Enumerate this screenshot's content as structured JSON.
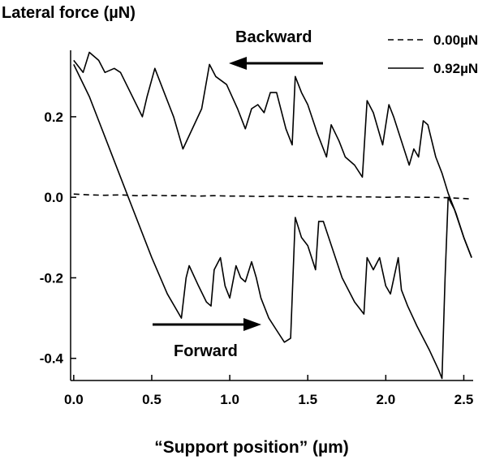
{
  "chart_data": {
    "type": "line",
    "title": "Lateral force (µN)",
    "xlabel": "“Support position” (µm)",
    "ylabel": "",
    "xlim": [
      -0.02,
      2.56
    ],
    "ylim": [
      -0.455,
      0.365
    ],
    "xticks": [
      0.0,
      0.5,
      1.0,
      1.5,
      2.0,
      2.5
    ],
    "xtick_labels": [
      "0.0",
      "0.5",
      "1.0",
      "1.5",
      "2.0",
      "2.5"
    ],
    "yticks": [
      0.2,
      0.0,
      -0.2,
      -0.4
    ],
    "ytick_labels": [
      "0.2",
      "0.0",
      "-0.2",
      "-0.4"
    ],
    "grid": false,
    "legend_position": "top-right",
    "annotations": {
      "backward": "Backward",
      "forward": "Forward"
    },
    "series": [
      {
        "name": "0.00µN",
        "style": "dashed",
        "x": [
          0.0,
          0.1,
          0.2,
          0.3,
          0.4,
          0.5,
          0.6,
          0.7,
          0.8,
          0.9,
          1.0,
          1.1,
          1.2,
          1.3,
          1.4,
          1.5,
          1.6,
          1.7,
          1.8,
          1.9,
          2.0,
          2.1,
          2.2,
          2.3,
          2.4,
          2.5,
          2.55
        ],
        "y": [
          0.008,
          0.006,
          0.005,
          0.006,
          0.004,
          0.005,
          0.004,
          0.004,
          0.003,
          0.004,
          0.003,
          0.003,
          0.002,
          0.003,
          0.002,
          0.002,
          0.001,
          0.002,
          0.001,
          0.001,
          0.0,
          0.001,
          0.0,
          0.0,
          -0.001,
          -0.003,
          -0.004
        ]
      },
      {
        "name": "0.92µN",
        "style": "solid",
        "description": "backward trace",
        "x": [
          0.0,
          0.06,
          0.1,
          0.16,
          0.2,
          0.26,
          0.3,
          0.44,
          0.47,
          0.52,
          0.58,
          0.64,
          0.7,
          0.82,
          0.87,
          0.91,
          0.98,
          1.05,
          1.1,
          1.14,
          1.18,
          1.22,
          1.26,
          1.3,
          1.36,
          1.4,
          1.42,
          1.46,
          1.5,
          1.56,
          1.62,
          1.65,
          1.7,
          1.74,
          1.8,
          1.85,
          1.88,
          1.92,
          1.98,
          2.02,
          2.05,
          2.1,
          2.15,
          2.18,
          2.21,
          2.24,
          2.27,
          2.32,
          2.36,
          2.4,
          2.45,
          2.5,
          2.55
        ],
        "y": [
          0.34,
          0.31,
          0.36,
          0.34,
          0.31,
          0.32,
          0.31,
          0.2,
          0.25,
          0.32,
          0.26,
          0.2,
          0.12,
          0.22,
          0.33,
          0.3,
          0.28,
          0.22,
          0.17,
          0.22,
          0.23,
          0.21,
          0.26,
          0.26,
          0.17,
          0.13,
          0.3,
          0.26,
          0.23,
          0.16,
          0.1,
          0.18,
          0.14,
          0.1,
          0.08,
          0.05,
          0.24,
          0.21,
          0.13,
          0.23,
          0.2,
          0.14,
          0.08,
          0.12,
          0.1,
          0.19,
          0.18,
          0.1,
          0.06,
          0.01,
          -0.04,
          -0.1,
          -0.15
        ]
      },
      {
        "name": "0.92µN",
        "style": "solid",
        "description": "forward trace",
        "x": [
          0.0,
          0.1,
          0.2,
          0.35,
          0.5,
          0.6,
          0.69,
          0.72,
          0.74,
          0.8,
          0.85,
          0.88,
          0.9,
          0.94,
          0.97,
          1.0,
          1.04,
          1.07,
          1.1,
          1.14,
          1.17,
          1.2,
          1.25,
          1.3,
          1.35,
          1.39,
          1.42,
          1.46,
          1.5,
          1.55,
          1.57,
          1.6,
          1.66,
          1.72,
          1.8,
          1.86,
          1.88,
          1.92,
          1.96,
          2.0,
          2.03,
          2.08,
          2.1,
          2.14,
          2.2,
          2.28,
          2.34,
          2.36,
          2.38,
          2.4,
          2.44,
          2.5,
          2.55
        ],
        "y": [
          0.33,
          0.25,
          0.15,
          0.0,
          -0.15,
          -0.24,
          -0.3,
          -0.2,
          -0.17,
          -0.22,
          -0.26,
          -0.27,
          -0.18,
          -0.15,
          -0.22,
          -0.25,
          -0.17,
          -0.2,
          -0.21,
          -0.16,
          -0.2,
          -0.25,
          -0.3,
          -0.33,
          -0.36,
          -0.35,
          -0.05,
          -0.1,
          -0.12,
          -0.18,
          -0.06,
          -0.06,
          -0.13,
          -0.2,
          -0.26,
          -0.29,
          -0.15,
          -0.18,
          -0.15,
          -0.22,
          -0.24,
          -0.15,
          -0.23,
          -0.27,
          -0.32,
          -0.38,
          -0.43,
          -0.45,
          -0.2,
          0.0,
          -0.03,
          -0.1,
          -0.15
        ]
      }
    ]
  }
}
